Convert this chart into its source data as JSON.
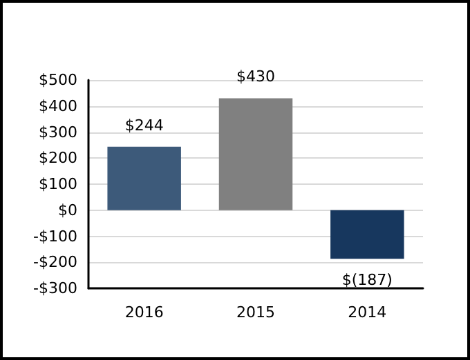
{
  "chart_data": {
    "type": "bar",
    "categories": [
      "2016",
      "2015",
      "2014"
    ],
    "values": [
      244,
      430,
      -187
    ],
    "colors": [
      "#3d5a7a",
      "#808080",
      "#17375e"
    ],
    "value_labels": [
      "$244",
      "$430",
      "$(187)"
    ],
    "ylim": [
      -300,
      500
    ],
    "yticks": [
      {
        "value": -300,
        "label": "-$300"
      },
      {
        "value": -200,
        "label": "-$200"
      },
      {
        "value": -100,
        "label": "-$100"
      },
      {
        "value": 0,
        "label": "$0"
      },
      {
        "value": 100,
        "label": "$100"
      },
      {
        "value": 200,
        "label": "$200"
      },
      {
        "value": 300,
        "label": "$300"
      },
      {
        "value": 400,
        "label": "$400"
      },
      {
        "value": 500,
        "label": "$500"
      }
    ],
    "grid": "y"
  }
}
